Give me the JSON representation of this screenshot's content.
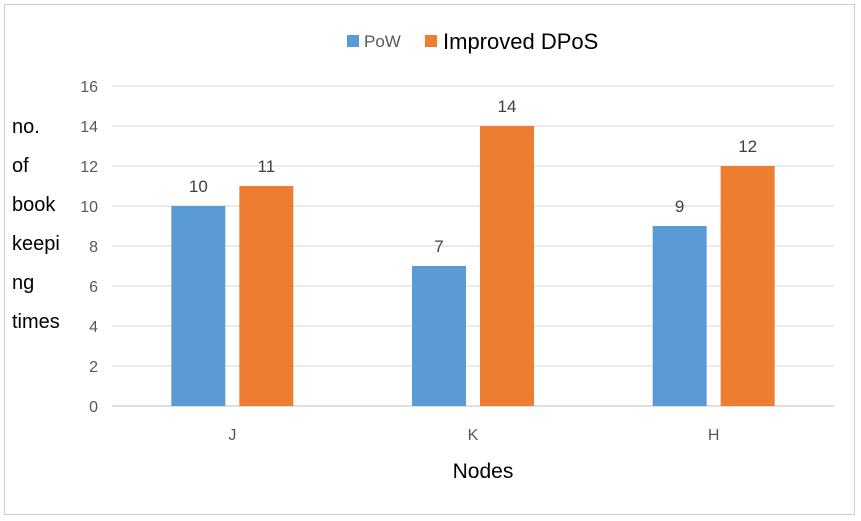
{
  "chart_data": {
    "type": "bar",
    "title": "",
    "xlabel": "Nodes",
    "ylabel_lines": [
      "no.",
      "of",
      "book",
      "keepi",
      "ng",
      "times"
    ],
    "categories": [
      "J",
      "K",
      "H"
    ],
    "series": [
      {
        "name": "PoW",
        "values": [
          10,
          7,
          9
        ],
        "color": "#5b9bd5"
      },
      {
        "name": "Improved DPoS",
        "values": [
          11,
          14,
          12
        ],
        "color": "#ed7d31"
      }
    ],
    "ylim": [
      0,
      16
    ],
    "yticks": [
      "0",
      "2",
      "4",
      "6",
      "8",
      "10",
      "12",
      "14",
      "16"
    ],
    "grid": true,
    "legend_position": "top-center"
  }
}
